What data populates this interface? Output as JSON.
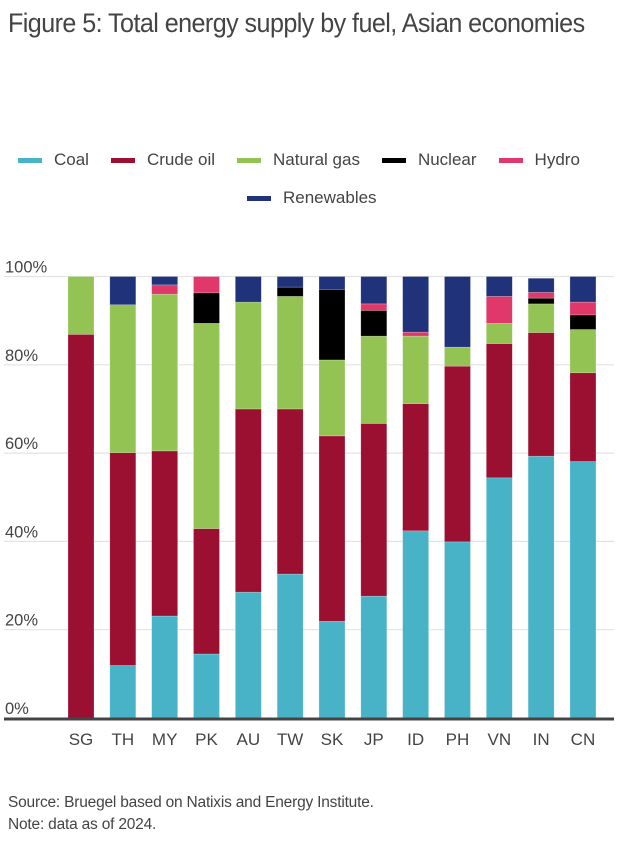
{
  "title": "Figure 5: Total energy supply by fuel, Asian economies",
  "footer": {
    "source": "Source: Bruegel based on Natixis and Energy Institute.",
    "note": "Note: data as of 2024."
  },
  "chart_data": {
    "type": "bar",
    "stacked": true,
    "title": "Figure 5: Total energy supply by fuel, Asian economies",
    "xlabel": "",
    "ylabel": "",
    "ylim": [
      0,
      100
    ],
    "yticks": [
      "0%",
      "20%",
      "40%",
      "60%",
      "80%",
      "100%"
    ],
    "ytick_values": [
      0,
      20,
      40,
      60,
      80,
      100
    ],
    "grid": true,
    "legend_position": "top",
    "categories": [
      "SG",
      "TH",
      "MY",
      "PK",
      "AU",
      "TW",
      "SK",
      "JP",
      "ID",
      "PH",
      "VN",
      "IN",
      "CN"
    ],
    "series": [
      {
        "name": "Coal",
        "color": "#48B3C7",
        "values": [
          0,
          11.9,
          23.1,
          14.5,
          28.5,
          32.6,
          21.9,
          27.6,
          42.4,
          39.9,
          54.4,
          59.3,
          58.1
        ]
      },
      {
        "name": "Crude oil",
        "color": "#9B1030",
        "values": [
          86.9,
          48.2,
          37.4,
          28.4,
          41.5,
          37.4,
          42.0,
          39.1,
          28.8,
          39.8,
          30.4,
          28.0,
          20.1
        ]
      },
      {
        "name": "Natural gas",
        "color": "#93C353",
        "values": [
          13.1,
          33.5,
          35.5,
          46.5,
          24.2,
          25.5,
          17.2,
          19.8,
          15.3,
          4.3,
          4.6,
          6.5,
          9.8
        ]
      },
      {
        "name": "Nuclear",
        "color": "#000000",
        "values": [
          0,
          0,
          0,
          6.9,
          0,
          2.1,
          16.0,
          5.8,
          0,
          0,
          0,
          1.3,
          3.3
        ]
      },
      {
        "name": "Hydro",
        "color": "#E0386A",
        "values": [
          0,
          0,
          2.1,
          3.7,
          0,
          0,
          0,
          1.5,
          0.9,
          0,
          6.1,
          1.3,
          2.9
        ]
      },
      {
        "name": "Renewables",
        "color": "#203279",
        "values": [
          0,
          6.4,
          1.9,
          0,
          5.8,
          2.4,
          2.9,
          6.2,
          12.6,
          16.0,
          4.5,
          3.2,
          5.8
        ]
      }
    ]
  }
}
